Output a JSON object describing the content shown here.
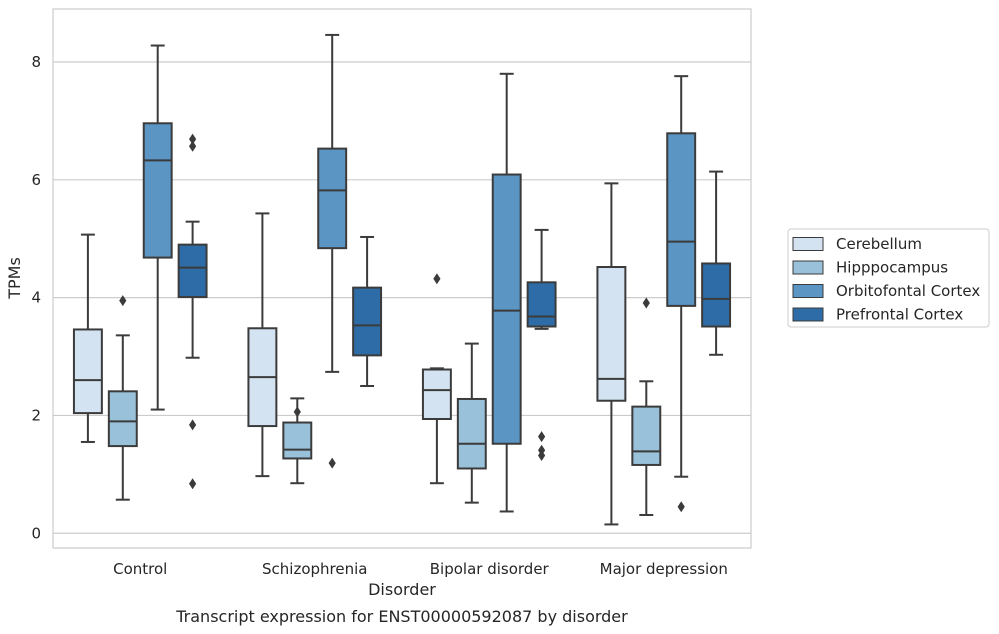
{
  "caption": "Transcript expression for ENST00000592087 by disorder",
  "chart_data": {
    "type": "box",
    "xlabel": "Disorder",
    "ylabel": "TPMs",
    "ylim": [
      -0.25,
      8.9
    ],
    "yticks": [
      0,
      2,
      4,
      6,
      8
    ],
    "categories": [
      "Control",
      "Schizophrenia",
      "Bipolar disorder",
      "Major depression"
    ],
    "grid": "y",
    "legend_position": "right",
    "series": [
      {
        "name": "Cerebellum",
        "color": "#d4e3f1",
        "boxes": [
          {
            "whislo": 1.55,
            "q1": 2.04,
            "med": 2.6,
            "q3": 3.46,
            "whishi": 5.07,
            "fliers": []
          },
          {
            "whislo": 0.97,
            "q1": 1.82,
            "med": 2.65,
            "q3": 3.48,
            "whishi": 5.43,
            "fliers": []
          },
          {
            "whislo": 0.85,
            "q1": 1.94,
            "med": 2.43,
            "q3": 2.78,
            "whishi": 2.8,
            "fliers": [
              4.32
            ]
          },
          {
            "whislo": 0.15,
            "q1": 2.25,
            "med": 2.62,
            "q3": 4.52,
            "whishi": 5.94,
            "fliers": []
          }
        ]
      },
      {
        "name": "Hipppocampus",
        "color": "#99c1d9",
        "boxes": [
          {
            "whislo": 0.57,
            "q1": 1.48,
            "med": 1.9,
            "q3": 2.41,
            "whishi": 3.36,
            "fliers": [
              3.95
            ]
          },
          {
            "whislo": 0.85,
            "q1": 1.27,
            "med": 1.42,
            "q3": 1.88,
            "whishi": 2.29,
            "fliers": [
              2.06
            ]
          },
          {
            "whislo": 0.52,
            "q1": 1.1,
            "med": 1.52,
            "q3": 2.28,
            "whishi": 3.22,
            "fliers": []
          },
          {
            "whislo": 0.31,
            "q1": 1.16,
            "med": 1.39,
            "q3": 2.15,
            "whishi": 2.58,
            "fliers": [
              3.91
            ]
          }
        ]
      },
      {
        "name": "Orbitofontal Cortex",
        "color": "#5a95c3",
        "boxes": [
          {
            "whislo": 2.1,
            "q1": 4.68,
            "med": 6.33,
            "q3": 6.96,
            "whishi": 8.28,
            "fliers": []
          },
          {
            "whislo": 2.74,
            "q1": 4.84,
            "med": 5.82,
            "q3": 6.53,
            "whishi": 8.46,
            "fliers": [
              1.19
            ]
          },
          {
            "whislo": 0.37,
            "q1": 1.52,
            "med": 3.78,
            "q3": 6.09,
            "whishi": 7.8,
            "fliers": []
          },
          {
            "whislo": 0.96,
            "q1": 3.86,
            "med": 4.95,
            "q3": 6.79,
            "whishi": 7.76,
            "fliers": [
              0.45
            ]
          }
        ]
      },
      {
        "name": "Prefrontal Cortex",
        "color": "#2d6ca6",
        "boxes": [
          {
            "whislo": 2.98,
            "q1": 4.01,
            "med": 4.51,
            "q3": 4.9,
            "whishi": 5.29,
            "fliers": [
              6.69,
              6.57,
              1.84,
              0.84
            ]
          },
          {
            "whislo": 2.5,
            "q1": 3.02,
            "med": 3.53,
            "q3": 4.17,
            "whishi": 5.03,
            "fliers": []
          },
          {
            "whislo": 3.47,
            "q1": 3.51,
            "med": 3.68,
            "q3": 4.26,
            "whishi": 5.15,
            "fliers": [
              1.64,
              1.41,
              1.32
            ]
          },
          {
            "whislo": 3.03,
            "q1": 3.51,
            "med": 3.98,
            "q3": 4.58,
            "whishi": 6.14,
            "fliers": []
          }
        ]
      }
    ]
  }
}
